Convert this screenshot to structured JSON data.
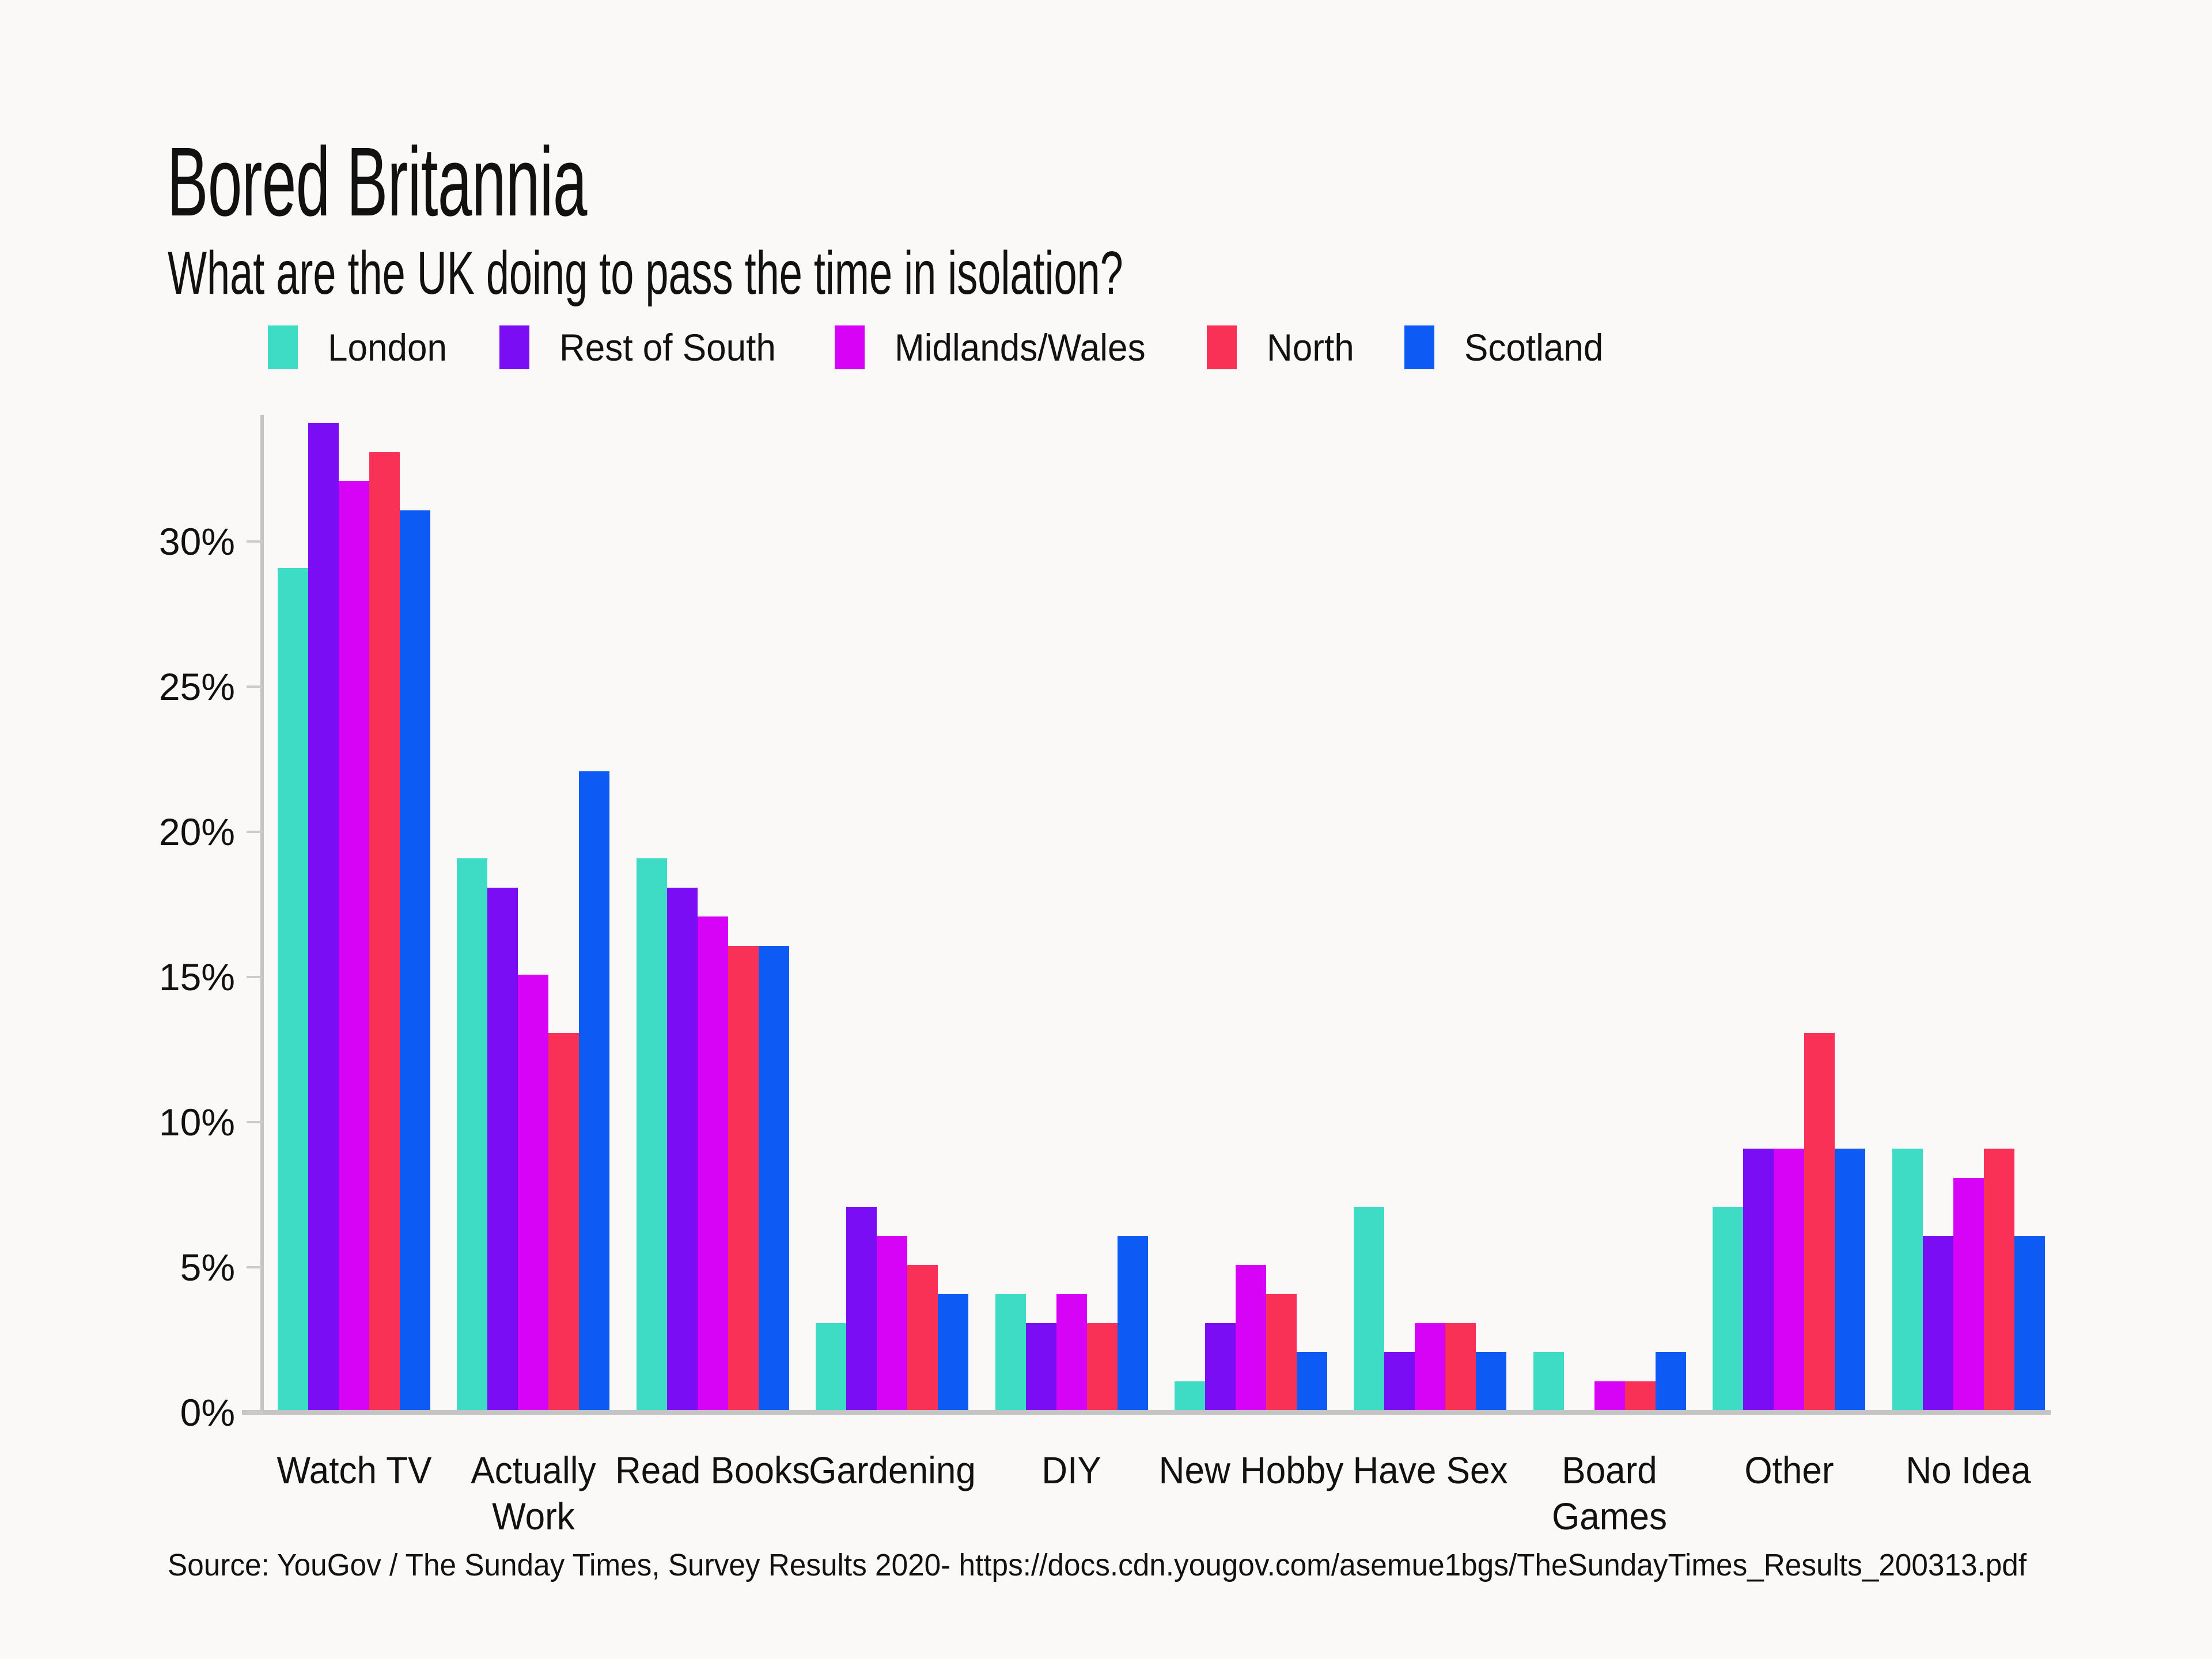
{
  "header": {
    "title": "Bored Britannia",
    "subtitle": "What are the UK doing to pass the time in isolation?"
  },
  "footer": {
    "source": "Source: YouGov / The Sunday Times, Survey Results 2020- https://docs.cdn.yougov.com/asemue1bgs/TheSundayTimes_Results_200313.pdf"
  },
  "colors": {
    "background": "#FBF8F8",
    "axis": "#C4C4C4",
    "text": "#111111"
  },
  "chart_data": {
    "type": "bar",
    "title": "Bored Britannia",
    "subtitle": "What are the UK doing to pass the time in isolation?",
    "categories": [
      "Watch TV",
      "Actually\nWork",
      "Read Books",
      "Gardening",
      "DIY",
      "New Hobby",
      "Have Sex",
      "Board\nGames",
      "Other",
      "No Idea"
    ],
    "series": [
      {
        "name": "London",
        "color": "#3EDCC4",
        "values": [
          29,
          19,
          19,
          3,
          4,
          1,
          7,
          2,
          7,
          9
        ]
      },
      {
        "name": "Rest of South",
        "color": "#7A0DF4",
        "values": [
          34,
          18,
          18,
          7,
          3,
          3,
          2,
          0,
          9,
          6
        ]
      },
      {
        "name": "Midlands/Wales",
        "color": "#D603F7",
        "values": [
          32,
          15,
          17,
          6,
          4,
          5,
          3,
          1,
          9,
          8
        ]
      },
      {
        "name": "North",
        "color": "#FA3157",
        "values": [
          33,
          13,
          16,
          5,
          3,
          4,
          3,
          1,
          13,
          9
        ]
      },
      {
        "name": "Scotland",
        "color": "#0D5BF4",
        "values": [
          31,
          22,
          16,
          4,
          6,
          2,
          2,
          2,
          9,
          6
        ]
      }
    ],
    "xlabel": "",
    "ylabel": "",
    "y_ticks": [
      "0%",
      "5%",
      "10%",
      "15%",
      "20%",
      "25%",
      "30%"
    ],
    "y_tick_values": [
      0,
      5,
      10,
      15,
      20,
      25,
      30
    ],
    "ylim": [
      0,
      34.2
    ],
    "grid": false,
    "legend_position": "top",
    "unit": "percent"
  }
}
